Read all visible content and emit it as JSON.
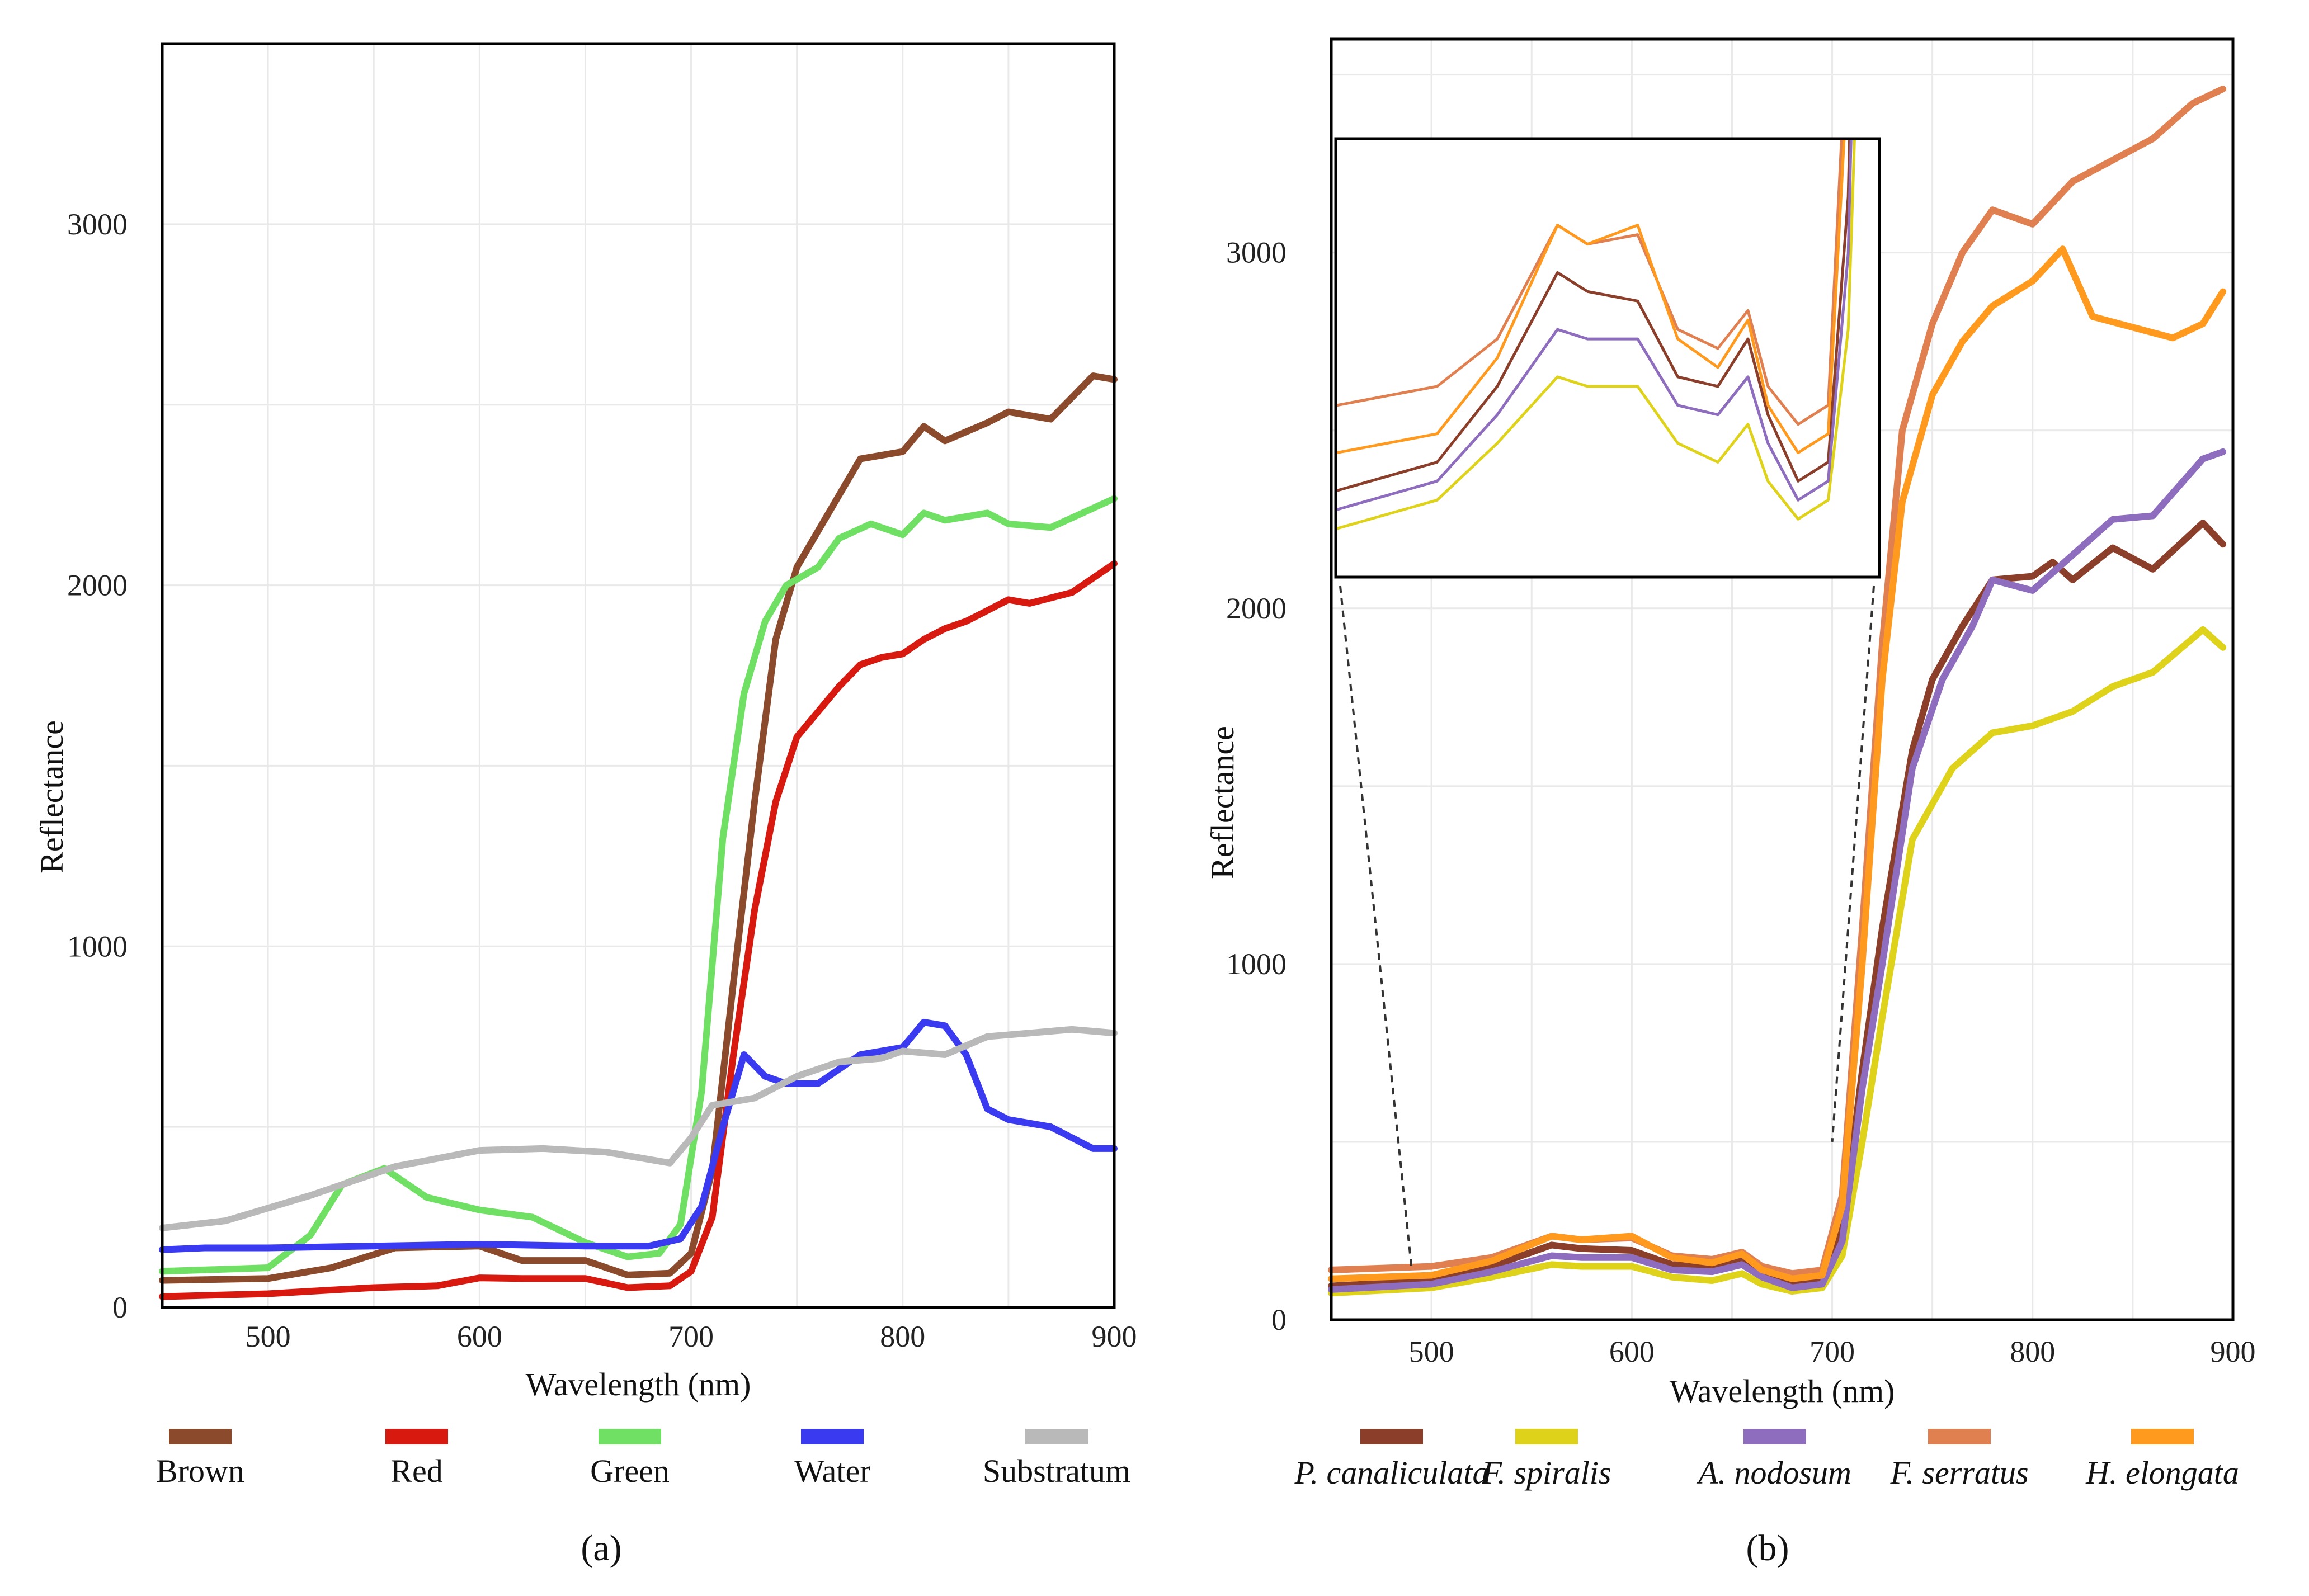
{
  "chart_data": [
    {
      "type": "line",
      "panel_label": "(a)",
      "xlabel": "Wavelength (nm)",
      "ylabel": "Reflectance",
      "xlim": [
        450,
        900
      ],
      "ylim": [
        0,
        3500
      ],
      "x_ticks": [
        500,
        600,
        700,
        800,
        900
      ],
      "y_ticks": [
        0,
        1000,
        2000,
        3000
      ],
      "grid": true,
      "legend_position": "bottom",
      "series": [
        {
          "name": "Brown",
          "color": "#8B4A2B",
          "points": [
            [
              450,
              75
            ],
            [
              500,
              80
            ],
            [
              530,
              110
            ],
            [
              560,
              165
            ],
            [
              600,
              170
            ],
            [
              620,
              130
            ],
            [
              650,
              130
            ],
            [
              670,
              90
            ],
            [
              690,
              95
            ],
            [
              700,
              150
            ],
            [
              710,
              380
            ],
            [
              720,
              900
            ],
            [
              730,
              1400
            ],
            [
              740,
              1850
            ],
            [
              750,
              2050
            ],
            [
              760,
              2150
            ],
            [
              770,
              2250
            ],
            [
              780,
              2350
            ],
            [
              800,
              2370
            ],
            [
              810,
              2440
            ],
            [
              820,
              2400
            ],
            [
              840,
              2450
            ],
            [
              850,
              2480
            ],
            [
              870,
              2460
            ],
            [
              890,
              2580
            ],
            [
              900,
              2570
            ]
          ]
        },
        {
          "name": "Red",
          "color": "#D7190F",
          "points": [
            [
              450,
              30
            ],
            [
              500,
              38
            ],
            [
              550,
              55
            ],
            [
              580,
              60
            ],
            [
              600,
              82
            ],
            [
              620,
              80
            ],
            [
              650,
              80
            ],
            [
              670,
              55
            ],
            [
              690,
              60
            ],
            [
              700,
              100
            ],
            [
              710,
              250
            ],
            [
              720,
              700
            ],
            [
              730,
              1100
            ],
            [
              740,
              1400
            ],
            [
              750,
              1580
            ],
            [
              760,
              1650
            ],
            [
              770,
              1720
            ],
            [
              780,
              1780
            ],
            [
              790,
              1800
            ],
            [
              800,
              1810
            ],
            [
              810,
              1850
            ],
            [
              820,
              1880
            ],
            [
              830,
              1900
            ],
            [
              840,
              1930
            ],
            [
              850,
              1960
            ],
            [
              860,
              1950
            ],
            [
              880,
              1980
            ],
            [
              900,
              2060
            ]
          ]
        },
        {
          "name": "Green",
          "color": "#6FE063",
          "points": [
            [
              450,
              100
            ],
            [
              500,
              110
            ],
            [
              520,
              200
            ],
            [
              535,
              340
            ],
            [
              555,
              385
            ],
            [
              575,
              305
            ],
            [
              600,
              270
            ],
            [
              625,
              250
            ],
            [
              650,
              180
            ],
            [
              670,
              140
            ],
            [
              685,
              150
            ],
            [
              695,
              230
            ],
            [
              705,
              600
            ],
            [
              715,
              1300
            ],
            [
              725,
              1700
            ],
            [
              735,
              1900
            ],
            [
              745,
              2000
            ],
            [
              760,
              2050
            ],
            [
              770,
              2130
            ],
            [
              785,
              2170
            ],
            [
              800,
              2140
            ],
            [
              810,
              2200
            ],
            [
              820,
              2180
            ],
            [
              840,
              2200
            ],
            [
              850,
              2170
            ],
            [
              870,
              2160
            ],
            [
              885,
              2200
            ],
            [
              900,
              2240
            ]
          ]
        },
        {
          "name": "Water",
          "color": "#3A3AF0",
          "points": [
            [
              450,
              160
            ],
            [
              470,
              165
            ],
            [
              500,
              165
            ],
            [
              550,
              170
            ],
            [
              600,
              175
            ],
            [
              650,
              170
            ],
            [
              680,
              170
            ],
            [
              695,
              190
            ],
            [
              705,
              280
            ],
            [
              715,
              500
            ],
            [
              725,
              700
            ],
            [
              735,
              640
            ],
            [
              745,
              620
            ],
            [
              760,
              620
            ],
            [
              770,
              660
            ],
            [
              780,
              700
            ],
            [
              800,
              720
            ],
            [
              810,
              790
            ],
            [
              820,
              780
            ],
            [
              830,
              700
            ],
            [
              840,
              550
            ],
            [
              850,
              520
            ],
            [
              870,
              500
            ],
            [
              890,
              440
            ],
            [
              900,
              440
            ]
          ]
        },
        {
          "name": "Substratum",
          "color": "#B9B9B9",
          "points": [
            [
              450,
              220
            ],
            [
              480,
              240
            ],
            [
              520,
              310
            ],
            [
              560,
              390
            ],
            [
              600,
              435
            ],
            [
              630,
              440
            ],
            [
              660,
              430
            ],
            [
              690,
              400
            ],
            [
              700,
              470
            ],
            [
              710,
              560
            ],
            [
              730,
              580
            ],
            [
              750,
              640
            ],
            [
              770,
              680
            ],
            [
              790,
              690
            ],
            [
              800,
              710
            ],
            [
              820,
              700
            ],
            [
              840,
              750
            ],
            [
              860,
              760
            ],
            [
              880,
              770
            ],
            [
              900,
              760
            ]
          ]
        }
      ]
    },
    {
      "type": "line",
      "panel_label": "(b)",
      "xlabel": "Wavelength (nm)",
      "ylabel": "Reflectance",
      "xlim": [
        450,
        900
      ],
      "ylim": [
        0,
        3600
      ],
      "x_ticks": [
        500,
        600,
        700,
        800,
        900
      ],
      "y_ticks": [
        0,
        1000,
        2000,
        3000
      ],
      "grid": true,
      "legend_position": "bottom",
      "inset": {
        "xlim": [
          450,
          720
        ],
        "description": "zoom of 450–720 nm region"
      },
      "series": [
        {
          "name": "P. canaliculata",
          "color": "#8B3F2A",
          "points": [
            [
              450,
              95
            ],
            [
              500,
              110
            ],
            [
              530,
              150
            ],
            [
              560,
              210
            ],
            [
              575,
              200
            ],
            [
              600,
              195
            ],
            [
              620,
              155
            ],
            [
              640,
              150
            ],
            [
              655,
              175
            ],
            [
              665,
              135
            ],
            [
              680,
              100
            ],
            [
              695,
              110
            ],
            [
              705,
              250
            ],
            [
              715,
              700
            ],
            [
              725,
              1100
            ],
            [
              740,
              1600
            ],
            [
              750,
              1800
            ],
            [
              765,
              1950
            ],
            [
              780,
              2080
            ],
            [
              800,
              2090
            ],
            [
              810,
              2130
            ],
            [
              820,
              2080
            ],
            [
              840,
              2170
            ],
            [
              860,
              2110
            ],
            [
              885,
              2240
            ],
            [
              895,
              2180
            ]
          ]
        },
        {
          "name": "F. spiralis",
          "color": "#DED21A",
          "points": [
            [
              450,
              75
            ],
            [
              500,
              90
            ],
            [
              530,
              120
            ],
            [
              560,
              155
            ],
            [
              575,
              150
            ],
            [
              600,
              150
            ],
            [
              620,
              120
            ],
            [
              640,
              110
            ],
            [
              655,
              130
            ],
            [
              665,
              100
            ],
            [
              680,
              80
            ],
            [
              695,
              90
            ],
            [
              705,
              180
            ],
            [
              715,
              500
            ],
            [
              725,
              850
            ],
            [
              740,
              1350
            ],
            [
              760,
              1550
            ],
            [
              780,
              1650
            ],
            [
              800,
              1670
            ],
            [
              820,
              1710
            ],
            [
              840,
              1780
            ],
            [
              860,
              1820
            ],
            [
              885,
              1940
            ],
            [
              895,
              1890
            ]
          ]
        },
        {
          "name": "A. nodosum",
          "color": "#8E6DBE",
          "points": [
            [
              450,
              85
            ],
            [
              500,
              100
            ],
            [
              530,
              135
            ],
            [
              560,
              180
            ],
            [
              575,
              175
            ],
            [
              600,
              175
            ],
            [
              620,
              140
            ],
            [
              640,
              135
            ],
            [
              655,
              155
            ],
            [
              665,
              120
            ],
            [
              680,
              90
            ],
            [
              695,
              100
            ],
            [
              705,
              220
            ],
            [
              715,
              650
            ],
            [
              725,
              1000
            ],
            [
              740,
              1550
            ],
            [
              755,
              1800
            ],
            [
              770,
              1950
            ],
            [
              780,
              2080
            ],
            [
              800,
              2050
            ],
            [
              820,
              2150
            ],
            [
              840,
              2250
            ],
            [
              860,
              2260
            ],
            [
              885,
              2420
            ],
            [
              895,
              2440
            ]
          ]
        },
        {
          "name": "F. serratus",
          "color": "#E08050",
          "points": [
            [
              450,
              140
            ],
            [
              500,
              150
            ],
            [
              530,
              175
            ],
            [
              560,
              235
            ],
            [
              575,
              225
            ],
            [
              600,
              230
            ],
            [
              620,
              180
            ],
            [
              640,
              170
            ],
            [
              655,
              190
            ],
            [
              665,
              150
            ],
            [
              680,
              130
            ],
            [
              695,
              140
            ],
            [
              705,
              350
            ],
            [
              715,
              1100
            ],
            [
              725,
              1900
            ],
            [
              735,
              2500
            ],
            [
              750,
              2800
            ],
            [
              765,
              3000
            ],
            [
              780,
              3120
            ],
            [
              800,
              3080
            ],
            [
              820,
              3200
            ],
            [
              840,
              3260
            ],
            [
              860,
              3320
            ],
            [
              880,
              3420
            ],
            [
              895,
              3460
            ]
          ]
        },
        {
          "name": "H. elongata",
          "color": "#FF9A1E",
          "points": [
            [
              450,
              115
            ],
            [
              500,
              125
            ],
            [
              530,
              165
            ],
            [
              560,
              235
            ],
            [
              575,
              225
            ],
            [
              600,
              235
            ],
            [
              620,
              175
            ],
            [
              640,
              160
            ],
            [
              655,
              185
            ],
            [
              665,
              140
            ],
            [
              680,
              115
            ],
            [
              695,
              125
            ],
            [
              705,
              320
            ],
            [
              715,
              1000
            ],
            [
              725,
              1800
            ],
            [
              735,
              2300
            ],
            [
              750,
              2600
            ],
            [
              765,
              2750
            ],
            [
              780,
              2850
            ],
            [
              800,
              2920
            ],
            [
              815,
              3010
            ],
            [
              830,
              2820
            ],
            [
              850,
              2790
            ],
            [
              870,
              2760
            ],
            [
              885,
              2800
            ],
            [
              895,
              2890
            ]
          ]
        }
      ]
    }
  ]
}
